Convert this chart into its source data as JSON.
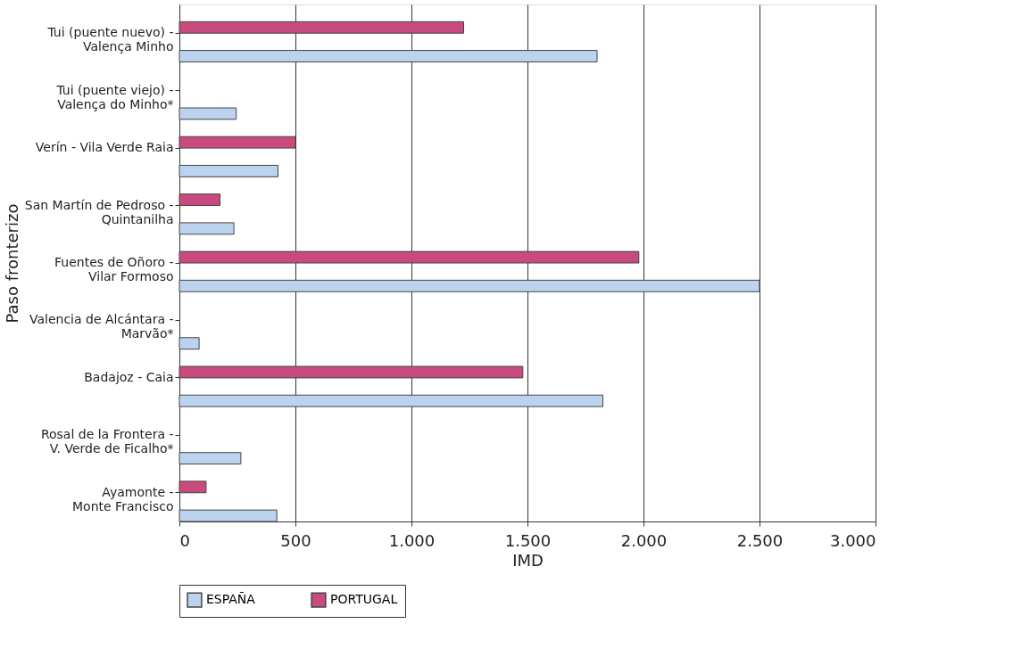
{
  "chart_data": {
    "type": "bar",
    "orientation": "horizontal",
    "xlabel": "IMD",
    "ylabel": "Paso fronterizo",
    "categories": [
      "Tui (puente nuevo) -\nValença Minho",
      "Tui (puente viejo) -\nValença do Minho*",
      "Verín - Vila Verde Raia",
      "San Martín de Pedroso -\nQuintanilha",
      "Fuentes de Oñoro -\nVilar Formoso",
      "Valencia de Alcántara -\nMarvão*",
      "Badajoz - Caia",
      "Rosal de la Frontera -\nV. Verde de Ficalho*",
      "Ayamonte -\nMonte Francisco"
    ],
    "series": [
      {
        "name": "ESPAÑA",
        "color": "#bcd3f0",
        "values": [
          1800,
          245,
          425,
          235,
          2500,
          85,
          1825,
          265,
          420
        ]
      },
      {
        "name": "PORTUGAL",
        "color": "#c94a7e",
        "values": [
          1225,
          null,
          500,
          175,
          1980,
          null,
          1480,
          null,
          115
        ]
      }
    ],
    "xlim": [
      0,
      3000
    ],
    "xticks": [
      0,
      {
        "value": 1000,
        "label": "1.000"
      },
      500,
      {
        "value": 1500,
        "label": "1.500"
      },
      {
        "value": 2000,
        "label": "2.000"
      },
      {
        "value": 2500,
        "label": "2.500"
      },
      {
        "value": 3000,
        "label": "3.000"
      }
    ],
    "grid": "x",
    "legend": "bottom"
  }
}
